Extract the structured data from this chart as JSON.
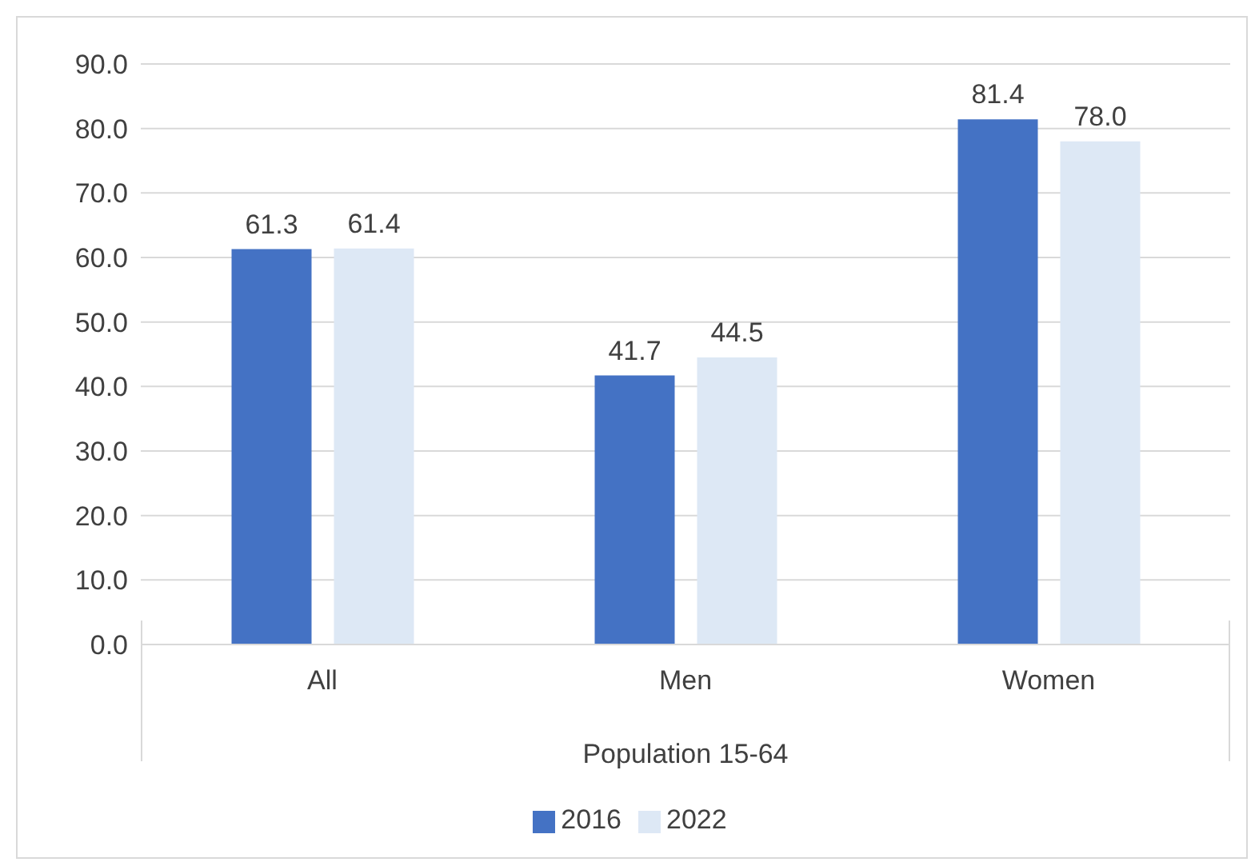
{
  "chart_data": {
    "type": "bar",
    "categories": [
      "All",
      "Men",
      "Women"
    ],
    "xlabel": "Population 15-64",
    "series": [
      {
        "name": "2016",
        "color": "#4472c4",
        "values": [
          61.3,
          41.7,
          81.4
        ],
        "value_labels": [
          "61.3",
          "41.7",
          "81.4"
        ]
      },
      {
        "name": "2022",
        "color": "#dde8f5",
        "values": [
          61.4,
          44.5,
          78.0
        ],
        "value_labels": [
          "61.4",
          "44.5",
          "78.0"
        ]
      }
    ],
    "ylim": [
      0,
      90
    ],
    "yticks": [
      {
        "value": 0,
        "label": "0.0"
      },
      {
        "value": 10,
        "label": "10.0"
      },
      {
        "value": 20,
        "label": "20.0"
      },
      {
        "value": 30,
        "label": "30.0"
      },
      {
        "value": 40,
        "label": "40.0"
      },
      {
        "value": 50,
        "label": "50.0"
      },
      {
        "value": 60,
        "label": "60.0"
      },
      {
        "value": 70,
        "label": "70.0"
      },
      {
        "value": 80,
        "label": "80.0"
      },
      {
        "value": 90,
        "label": "90.0"
      }
    ],
    "grid": "y",
    "legend": "bottom"
  }
}
